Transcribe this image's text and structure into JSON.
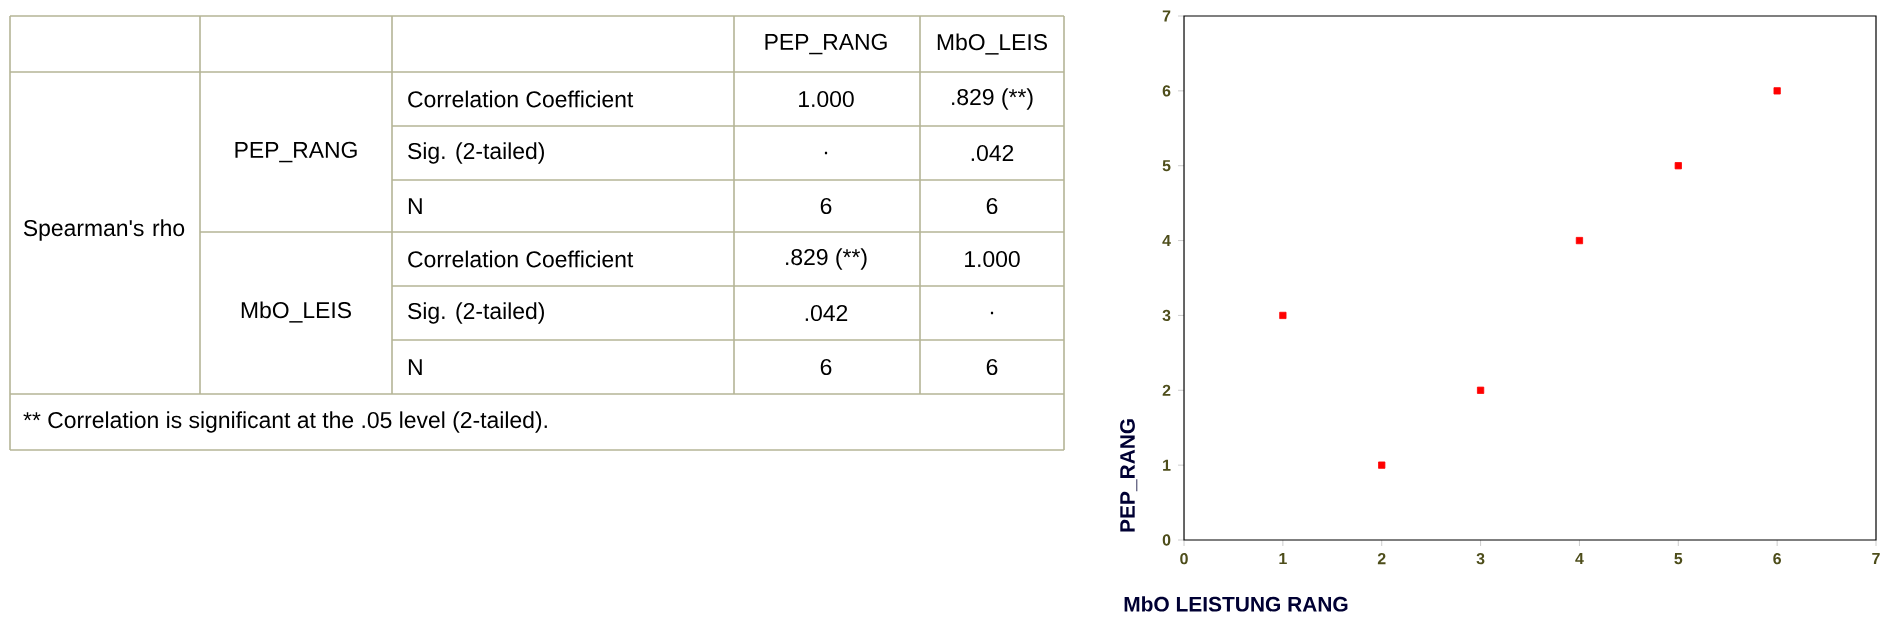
{
  "chart_data": [
    {
      "type": "other",
      "annotations": [
        "PEP_RANG",
        "MbO_LEIS",
        "Spearman's rho",
        "PEP_RANG",
        "Correlation Coefficient",
        "1.000",
        ".829 (**)",
        "Sig. (2-tailed)",
        ".",
        ".042",
        "N",
        "6",
        "6",
        "MbO_LEIS",
        "Correlation Coefficient",
        ".829 (**)",
        "1.000",
        "Sig. (2-tailed)",
        ".042",
        ".",
        "N",
        "6",
        "6",
        "** Correlation is significant at the .05 level (2-tailed)."
      ]
    },
    {
      "type": "scatter",
      "xlabel": "MbO LEISTUNG RANG",
      "ylabel": "PEP_RANG",
      "x": [
        1,
        2,
        3,
        4,
        5,
        6
      ],
      "values": [
        3,
        1,
        2,
        4,
        5,
        6
      ],
      "color": "#ff0000",
      "marker": "square",
      "xlim": [
        0,
        7
      ],
      "ylim": [
        0,
        7
      ],
      "xticks": [
        0,
        1,
        2,
        3,
        4,
        5,
        6,
        7
      ],
      "yticks": [
        0,
        1,
        2,
        3,
        4,
        5,
        6,
        7
      ]
    }
  ]
}
